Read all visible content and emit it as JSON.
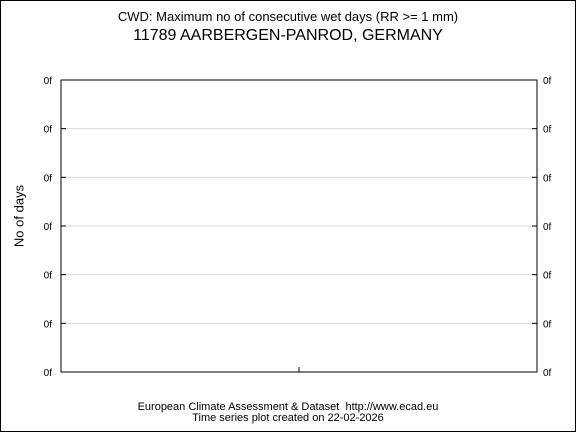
{
  "chart_data": {
    "type": "line",
    "title": "CWD: Maximum no of consecutive wet days (RR >= 1 mm)",
    "subtitle": "11789 AARBERGEN-PANROD, GERMANY",
    "ylabel": "No of days",
    "xlabel": "",
    "y_tick_labels": [
      "0f",
      "0f",
      "0f",
      "0f",
      "0f",
      "0f",
      "0f"
    ],
    "x": [],
    "values": [],
    "grid": true,
    "colors": {
      "axis": "#000000",
      "grid": "#d9d9d9",
      "background": "#ffffff"
    }
  },
  "footer": {
    "line1": "European Climate Assessment & Dataset  http://www.ecad.eu",
    "line2": "Time series plot created on 22-02-2026"
  }
}
